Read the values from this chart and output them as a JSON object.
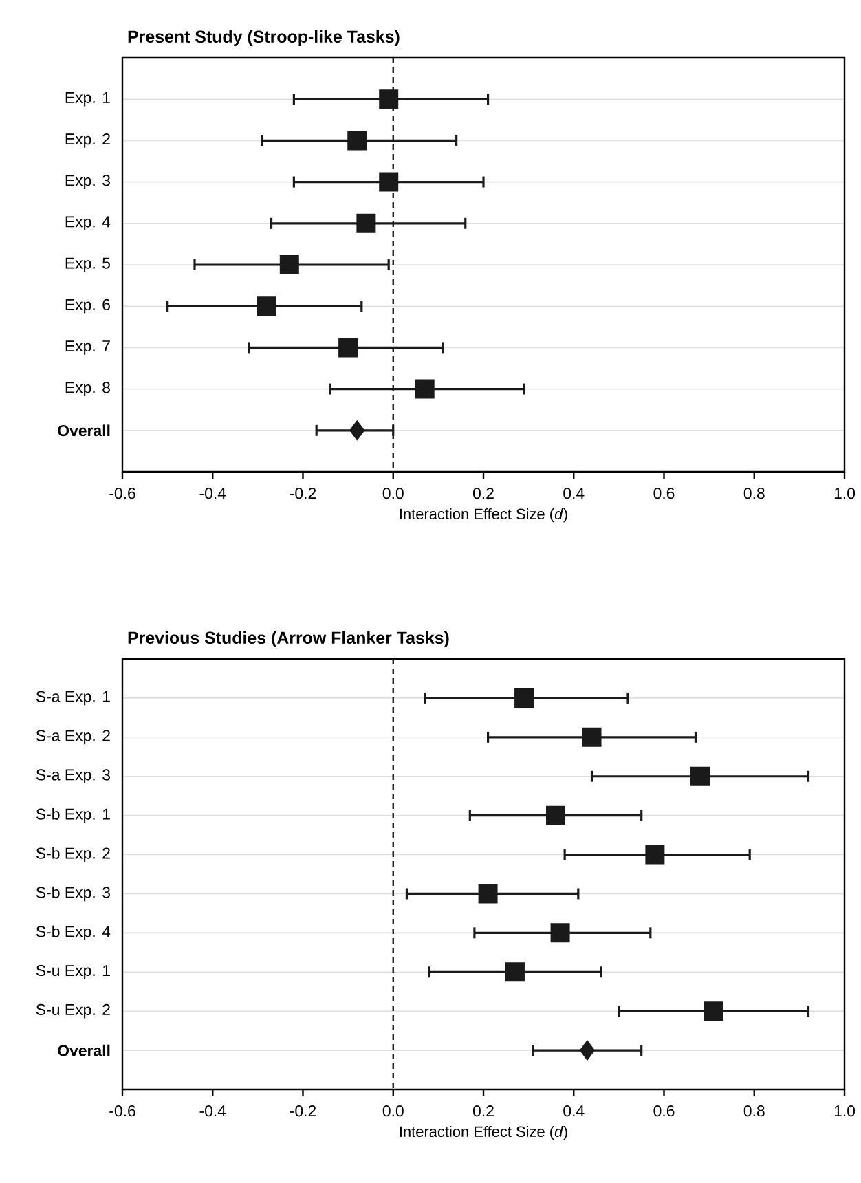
{
  "chart_data": [
    {
      "type": "scatter",
      "orientation": "horizontal",
      "title": "Present Study (Stroop-like Tasks)",
      "xlabel": "Interaction Effect Size (*d*)",
      "categories": [
        "Exp. 1",
        "Exp. 2",
        "Exp. 3",
        "Exp. 4",
        "Exp. 5",
        "Exp. 6",
        "Exp. 7",
        "Exp. 8",
        "**Overall**"
      ],
      "series": [
        {
          "color": "#1a1a1a",
          "marker": "square",
          "values": [
            -0.01,
            -0.08,
            -0.01,
            -0.06,
            -0.23,
            -0.28,
            -0.1,
            0.07,
            null
          ],
          "errors": [
            [
              -0.22,
              0.21
            ],
            [
              -0.29,
              0.14
            ],
            [
              -0.22,
              0.2
            ],
            [
              -0.27,
              0.16
            ],
            [
              -0.44,
              -0.01
            ],
            [
              -0.5,
              -0.07
            ],
            [
              -0.32,
              0.11
            ],
            [
              -0.14,
              0.29
            ],
            null
          ]
        },
        {
          "color": "#1a1a1a",
          "marker": "diamond",
          "values": [
            null,
            null,
            null,
            null,
            null,
            null,
            null,
            null,
            -0.08
          ],
          "errors": [
            null,
            null,
            null,
            null,
            null,
            null,
            null,
            null,
            [
              -0.17,
              0.0
            ]
          ]
        }
      ],
      "xlim": [
        -0.6,
        1.0
      ],
      "xticks": [
        {
          "value": -0.6,
          "label": "-0.6"
        },
        {
          "value": -0.4,
          "label": "-0.4"
        },
        {
          "value": -0.2,
          "label": "-0.2"
        },
        {
          "value": 0,
          "label": "0.0"
        },
        {
          "value": 0.2,
          "label": "0.2"
        },
        {
          "value": 0.4,
          "label": "0.4"
        },
        {
          "value": 0.6,
          "label": "0.6"
        },
        {
          "value": 0.8,
          "label": "0.8"
        },
        {
          "value": 1.0,
          "label": "1.0"
        }
      ],
      "ref_lines": [
        {
          "axis": "x",
          "value": 0,
          "line_style": "dashed",
          "color": "#1a1a1a"
        }
      ],
      "grid": "y"
    },
    {
      "type": "scatter",
      "orientation": "horizontal",
      "title": "Previous Studies (Arrow Flanker Tasks)",
      "xlabel": "Interaction Effect Size (*d*)",
      "categories": [
        "S-a Exp. 1",
        "S-a Exp. 2",
        "S-a Exp. 3",
        "S-b Exp. 1",
        "S-b Exp. 2",
        "S-b Exp. 3",
        "S-b Exp. 4",
        "S-u Exp. 1",
        "S-u Exp. 2",
        "**Overall**"
      ],
      "series": [
        {
          "color": "#1a1a1a",
          "marker": "square",
          "values": [
            0.29,
            0.44,
            0.68,
            0.36,
            0.58,
            0.21,
            0.37,
            0.27,
            0.71,
            null
          ],
          "errors": [
            [
              0.07,
              0.52
            ],
            [
              0.21,
              0.67
            ],
            [
              0.44,
              0.92
            ],
            [
              0.17,
              0.55
            ],
            [
              0.38,
              0.79
            ],
            [
              0.03,
              0.41
            ],
            [
              0.18,
              0.57
            ],
            [
              0.08,
              0.46
            ],
            [
              0.5,
              0.92
            ],
            null
          ]
        },
        {
          "color": "#1a1a1a",
          "marker": "diamond",
          "values": [
            null,
            null,
            null,
            null,
            null,
            null,
            null,
            null,
            null,
            0.43
          ],
          "errors": [
            null,
            null,
            null,
            null,
            null,
            null,
            null,
            null,
            null,
            [
              0.31,
              0.55
            ]
          ]
        }
      ],
      "xlim": [
        -0.6,
        1.0
      ],
      "xticks": [
        {
          "value": -0.6,
          "label": "-0.6"
        },
        {
          "value": -0.4,
          "label": "-0.4"
        },
        {
          "value": -0.2,
          "label": "-0.2"
        },
        {
          "value": 0,
          "label": "0.0"
        },
        {
          "value": 0.2,
          "label": "0.2"
        },
        {
          "value": 0.4,
          "label": "0.4"
        },
        {
          "value": 0.6,
          "label": "0.6"
        },
        {
          "value": 0.8,
          "label": "0.8"
        },
        {
          "value": 1.0,
          "label": "1.0"
        }
      ],
      "ref_lines": [
        {
          "axis": "x",
          "value": 0,
          "line_style": "dashed",
          "color": "#1a1a1a"
        }
      ],
      "grid": "y"
    }
  ]
}
